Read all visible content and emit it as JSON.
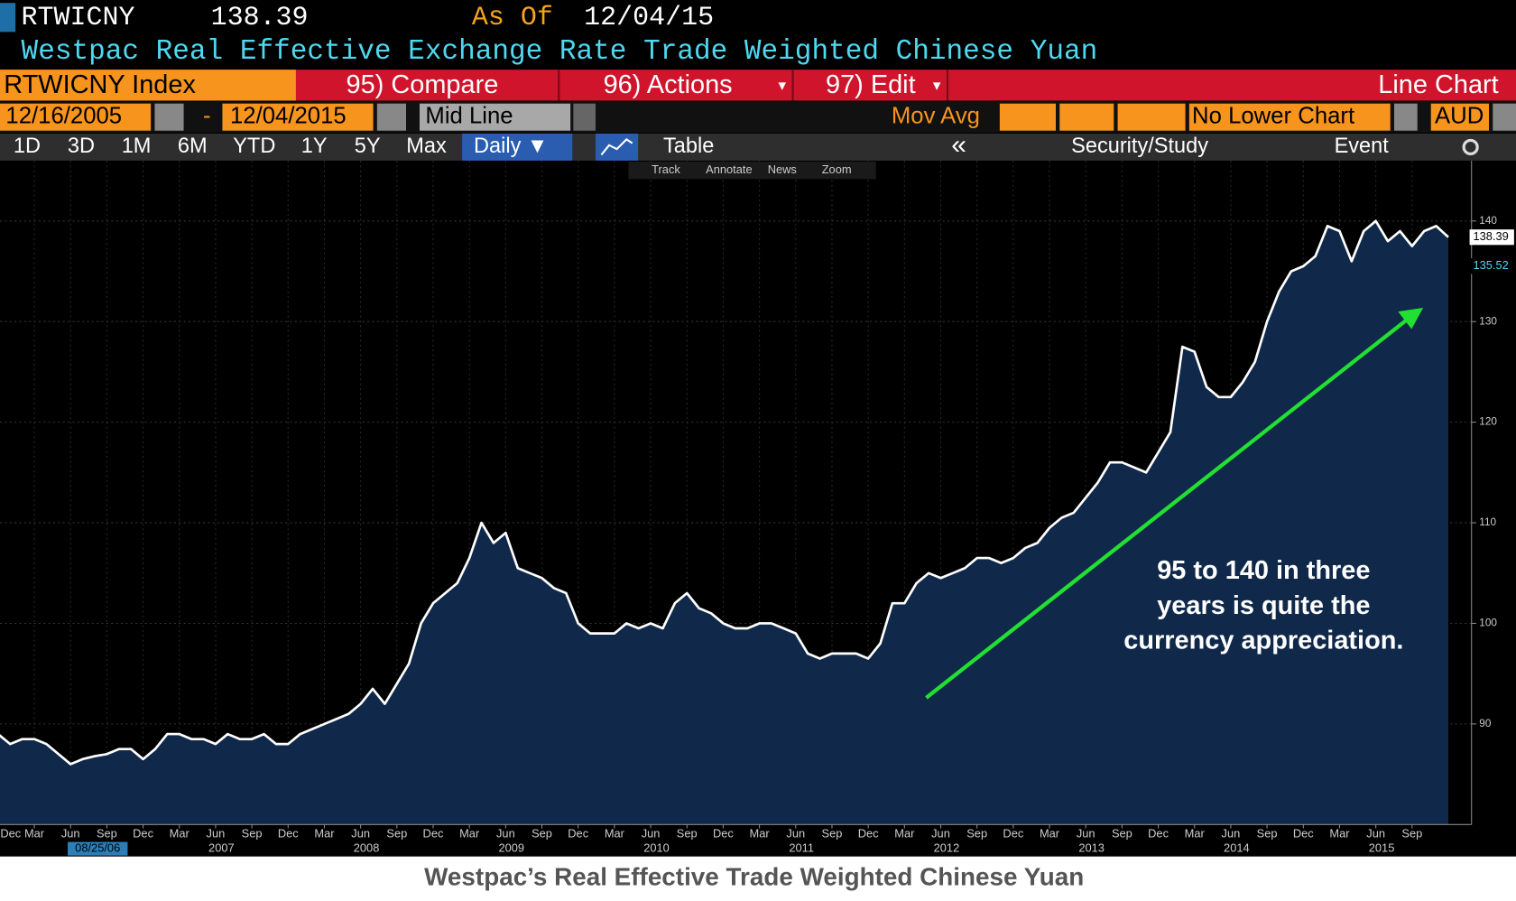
{
  "header": {
    "ticker": "RTWICNY",
    "price": "138.39",
    "as_of_label": "As Of",
    "as_of_date": "12/04/15",
    "description": "Westpac Real Effective Exchange Rate Trade Weighted Chinese Yuan"
  },
  "toolbar": {
    "security": "RTWICNY Index",
    "compare": "95) Compare",
    "actions": "96) Actions",
    "edit": "97) Edit",
    "chart_type": "Line Chart"
  },
  "settings": {
    "start_date": "12/16/2005",
    "dash": "-",
    "end_date": "12/04/2015",
    "line_mode": "Mid Line",
    "mov_avg": "Mov Avg",
    "lower_chart": "No Lower Chart",
    "currency": "AUD"
  },
  "tabs": {
    "periods": [
      "1D",
      "3D",
      "1M",
      "6M",
      "YTD",
      "1Y",
      "5Y",
      "Max"
    ],
    "frequency": "Daily ▼",
    "table": "Table",
    "collapse": "«",
    "security_study": "Security/Study",
    "event": "Event"
  },
  "tools": [
    "Track",
    "Annotate",
    "News",
    "Zoom"
  ],
  "chart_data": {
    "type": "line",
    "x": [
      "2005-12",
      "2006-01",
      "2006-02",
      "2006-03",
      "2006-04",
      "2006-05",
      "2006-06",
      "2006-07",
      "2006-08",
      "2006-09",
      "2006-10",
      "2006-11",
      "2006-12",
      "2007-01",
      "2007-02",
      "2007-03",
      "2007-04",
      "2007-05",
      "2007-06",
      "2007-07",
      "2007-08",
      "2007-09",
      "2007-10",
      "2007-11",
      "2007-12",
      "2008-01",
      "2008-02",
      "2008-03",
      "2008-04",
      "2008-05",
      "2008-06",
      "2008-07",
      "2008-08",
      "2008-09",
      "2008-10",
      "2008-11",
      "2008-12",
      "2009-01",
      "2009-02",
      "2009-03",
      "2009-04",
      "2009-05",
      "2009-06",
      "2009-07",
      "2009-08",
      "2009-09",
      "2009-10",
      "2009-11",
      "2009-12",
      "2010-01",
      "2010-02",
      "2010-03",
      "2010-04",
      "2010-05",
      "2010-06",
      "2010-07",
      "2010-08",
      "2010-09",
      "2010-10",
      "2010-11",
      "2010-12",
      "2011-01",
      "2011-02",
      "2011-03",
      "2011-04",
      "2011-05",
      "2011-06",
      "2011-07",
      "2011-08",
      "2011-09",
      "2011-10",
      "2011-11",
      "2011-12",
      "2012-01",
      "2012-02",
      "2012-03",
      "2012-04",
      "2012-05",
      "2012-06",
      "2012-07",
      "2012-08",
      "2012-09",
      "2012-10",
      "2012-11",
      "2012-12",
      "2013-01",
      "2013-02",
      "2013-03",
      "2013-04",
      "2013-05",
      "2013-06",
      "2013-07",
      "2013-08",
      "2013-09",
      "2013-10",
      "2013-11",
      "2013-12",
      "2014-01",
      "2014-02",
      "2014-03",
      "2014-04",
      "2014-05",
      "2014-06",
      "2014-07",
      "2014-08",
      "2014-09",
      "2014-10",
      "2014-11",
      "2014-12",
      "2015-01",
      "2015-02",
      "2015-03",
      "2015-04",
      "2015-05",
      "2015-06",
      "2015-07",
      "2015-08",
      "2015-09",
      "2015-10",
      "2015-11",
      "2015-12"
    ],
    "series": [
      {
        "color": "#ffffff",
        "area_color": "#10294a",
        "values": [
          89,
          88,
          88.5,
          88.5,
          88,
          87,
          86,
          86.5,
          86.8,
          87,
          87.5,
          87.5,
          86.5,
          87.5,
          89,
          89,
          88.5,
          88.5,
          88,
          89,
          88.5,
          88.5,
          89,
          88,
          88,
          89,
          89.5,
          90,
          90.5,
          91,
          92,
          93.5,
          92,
          94,
          96,
          100,
          102,
          103,
          104,
          106.5,
          110,
          108,
          109,
          105.5,
          105,
          104.5,
          103.5,
          103,
          100,
          99,
          99,
          99,
          100,
          99.5,
          100,
          99.5,
          102,
          103,
          101.5,
          101,
          100,
          99.5,
          99.5,
          100,
          100,
          99.5,
          99,
          97,
          96.5,
          97,
          97,
          97,
          96.5,
          98,
          102,
          102,
          104,
          105,
          104.5,
          105,
          105.5,
          106.5,
          106.5,
          106,
          106.5,
          107.5,
          108,
          109.5,
          110.5,
          111,
          112.5,
          114,
          116,
          116,
          115.5,
          115,
          117,
          119,
          127.5,
          127,
          123.5,
          122.5,
          122.5,
          124,
          126,
          130,
          133,
          135,
          135.5,
          136.5,
          139.5,
          139,
          136,
          139,
          140,
          138,
          139,
          137.5,
          139,
          139.5,
          138.4
        ]
      }
    ],
    "xlim": [
      "2005-12",
      "2015-12"
    ],
    "xticks": [
      {
        "value": "2005-12",
        "label": "Dec"
      },
      {
        "value": "2006-03",
        "label": "Mar"
      },
      {
        "value": "2006-06",
        "label": "Jun"
      },
      {
        "value": "2006-09",
        "label": "Sep"
      },
      {
        "value": "2006-12",
        "label": "Dec"
      },
      {
        "value": "2007-03",
        "label": "Mar"
      },
      {
        "value": "2007-06",
        "label": "Jun"
      },
      {
        "value": "2007-09",
        "label": "Sep"
      },
      {
        "value": "2007-12",
        "label": "Dec"
      },
      {
        "value": "2008-03",
        "label": "Mar"
      },
      {
        "value": "2008-06",
        "label": "Jun"
      },
      {
        "value": "2008-09",
        "label": "Sep"
      },
      {
        "value": "2008-12",
        "label": "Dec"
      },
      {
        "value": "2009-03",
        "label": "Mar"
      },
      {
        "value": "2009-06",
        "label": "Jun"
      },
      {
        "value": "2009-09",
        "label": "Sep"
      },
      {
        "value": "2009-12",
        "label": "Dec"
      },
      {
        "value": "2010-03",
        "label": "Mar"
      },
      {
        "value": "2010-06",
        "label": "Jun"
      },
      {
        "value": "2010-09",
        "label": "Sep"
      },
      {
        "value": "2010-12",
        "label": "Dec"
      },
      {
        "value": "2011-03",
        "label": "Mar"
      },
      {
        "value": "2011-06",
        "label": "Jun"
      },
      {
        "value": "2011-09",
        "label": "Sep"
      },
      {
        "value": "2011-12",
        "label": "Dec"
      },
      {
        "value": "2012-03",
        "label": "Mar"
      },
      {
        "value": "2012-06",
        "label": "Jun"
      },
      {
        "value": "2012-09",
        "label": "Sep"
      },
      {
        "value": "2012-12",
        "label": "Dec"
      },
      {
        "value": "2013-03",
        "label": "Mar"
      },
      {
        "value": "2013-06",
        "label": "Jun"
      },
      {
        "value": "2013-09",
        "label": "Sep"
      },
      {
        "value": "2013-12",
        "label": "Dec"
      },
      {
        "value": "2014-03",
        "label": "Mar"
      },
      {
        "value": "2014-06",
        "label": "Jun"
      },
      {
        "value": "2014-09",
        "label": "Sep"
      },
      {
        "value": "2014-12",
        "label": "Dec"
      },
      {
        "value": "2015-03",
        "label": "Mar"
      },
      {
        "value": "2015-06",
        "label": "Jun"
      },
      {
        "value": "2015-09",
        "label": "Sep"
      }
    ],
    "year_labels": [
      {
        "value": "2007-06",
        "label": "2007"
      },
      {
        "value": "2008-06",
        "label": "2008"
      },
      {
        "value": "2009-06",
        "label": "2009"
      },
      {
        "value": "2010-06",
        "label": "2010"
      },
      {
        "value": "2011-06",
        "label": "2011"
      },
      {
        "value": "2012-06",
        "label": "2012"
      },
      {
        "value": "2013-06",
        "label": "2013"
      },
      {
        "value": "2014-06",
        "label": "2014"
      },
      {
        "value": "2015-06",
        "label": "2015"
      }
    ],
    "cursor_date": "08/25/06",
    "ylim": [
      80,
      146
    ],
    "yticks": [
      90,
      100,
      110,
      120,
      130,
      140
    ],
    "grid": true,
    "price_tags": [
      138.39,
      135.52
    ],
    "annotation": [
      "95 to 140 in three",
      "years is quite the",
      "currency appreciation."
    ]
  },
  "caption": "Westpac’s Real Effective Trade Weighted Chinese Yuan"
}
